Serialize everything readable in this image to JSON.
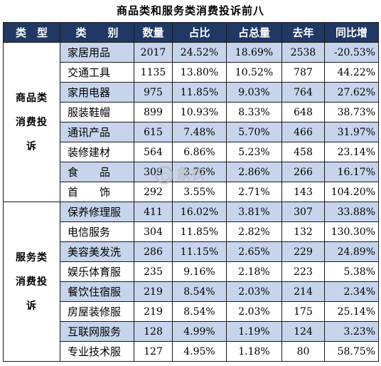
{
  "title": "商品类和服务类消费投诉前八",
  "headers": [
    "类　型",
    "类　　别",
    "数量",
    "占比",
    "占总量",
    "去年",
    "同比增"
  ],
  "groups": [
    {
      "category_lines": [
        "商品类",
        "消费投",
        "诉"
      ],
      "rows": [
        {
          "item": "家居用品",
          "count": "2017",
          "share": "24.52%",
          "share_total": "18.69%",
          "last_year": "2538",
          "yoy": "-20.53%"
        },
        {
          "item": "交通工具",
          "count": "1135",
          "share": "13.80%",
          "share_total": "10.52%",
          "last_year": "787",
          "yoy": "44.22%"
        },
        {
          "item": "家用电器",
          "count": "975",
          "share": "11.85%",
          "share_total": "9.03%",
          "last_year": "764",
          "yoy": "27.62%"
        },
        {
          "item": "服装鞋帽",
          "count": "899",
          "share": "10.93%",
          "share_total": "8.33%",
          "last_year": "648",
          "yoy": "38.73%"
        },
        {
          "item": "通讯产品",
          "count": "615",
          "share": "7.48%",
          "share_total": "5.70%",
          "last_year": "466",
          "yoy": "31.97%"
        },
        {
          "item": "装修建材",
          "count": "564",
          "share": "6.86%",
          "share_total": "5.23%",
          "last_year": "458",
          "yoy": "23.14%"
        },
        {
          "item": "食　　品",
          "count": "309",
          "share": "3.76%",
          "share_total": "2.86%",
          "last_year": "266",
          "yoy": "16.17%"
        },
        {
          "item": "首　　饰",
          "count": "292",
          "share": "3.55%",
          "share_total": "2.71%",
          "last_year": "143",
          "yoy": "104.20%"
        }
      ]
    },
    {
      "category_lines": [
        "服务类",
        "消费投",
        "诉"
      ],
      "rows": [
        {
          "item": "保养修理服",
          "count": "411",
          "share": "16.02%",
          "share_total": "3.81%",
          "last_year": "307",
          "yoy": "33.88%"
        },
        {
          "item": "电信服务",
          "count": "304",
          "share": "11.85%",
          "share_total": "2.82%",
          "last_year": "132",
          "yoy": "130.30%"
        },
        {
          "item": "美容美发洗",
          "count": "286",
          "share": "11.15%",
          "share_total": "2.65%",
          "last_year": "229",
          "yoy": "24.89%"
        },
        {
          "item": "娱乐体育服",
          "count": "235",
          "share": "9.16%",
          "share_total": "2.18%",
          "last_year": "223",
          "yoy": "5.38%"
        },
        {
          "item": "餐饮住宿服",
          "count": "219",
          "share": "8.54%",
          "share_total": "2.03%",
          "last_year": "214",
          "yoy": "2.34%"
        },
        {
          "item": "房屋装修服",
          "count": "219",
          "share": "8.54%",
          "share_total": "2.03%",
          "last_year": "175",
          "yoy": "25.14%"
        },
        {
          "item": "互联网服务",
          "count": "128",
          "share": "4.99%",
          "share_total": "1.19%",
          "last_year": "124",
          "yoy": "3.23%"
        },
        {
          "item": "专业技术服",
          "count": "127",
          "share": "4.95%",
          "share_total": "1.18%",
          "last_year": "80",
          "yoy": "58.75%"
        }
      ]
    }
  ],
  "watermark": "象衣",
  "colors": {
    "header_bg": "#1f3864",
    "header_text": "#ffffff",
    "row_shade": "#c6d4ec",
    "row_plain": "#ffffff"
  }
}
